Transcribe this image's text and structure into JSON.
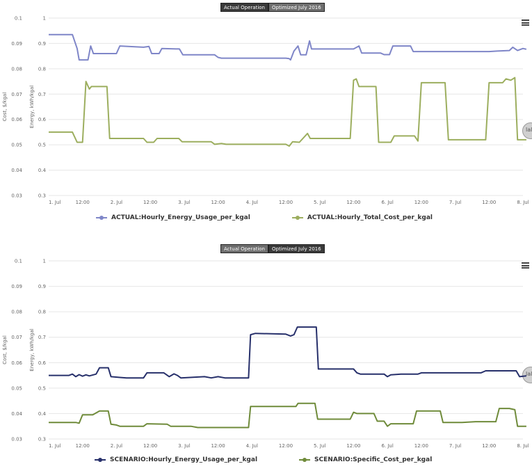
{
  "tabs": {
    "actual": "Actual Operation",
    "optimized": "Optimized July 2016"
  },
  "colors": {
    "actual_energy": "#7f86c8",
    "actual_cost": "#9cae5e",
    "scenario_energy": "#27306b",
    "scenario_cost": "#6f8b3a",
    "grid": "#e6e6e6"
  },
  "chart_data": [
    {
      "type": "line",
      "active_tab": "actual",
      "xlabel": "",
      "x_tick_labels": [
        "1. Jul",
        "12:00",
        "2. Jul",
        "12:00",
        "3. Jul",
        "12:00",
        "4. Jul",
        "12:00",
        "5. Jul",
        "12:00",
        "6. Jul",
        "12:00",
        "7. Jul",
        "12:00",
        "8. Jul"
      ],
      "y_axis_cost": {
        "label": "Cost, $/kgal",
        "ylim": [
          0.03,
          0.1
        ],
        "ticks": [
          "0.03",
          "0.04",
          "0.05",
          "0.06",
          "0.07",
          "0.08",
          "0.09",
          "0.1"
        ]
      },
      "y_axis_energy": {
        "label": "Energy, kWh/kgal",
        "ylim": [
          0.3,
          1
        ],
        "ticks": [
          "0.3",
          "0.4",
          "0.5",
          "0.6",
          "0.7",
          "0.8",
          "0.9",
          "1"
        ]
      },
      "legend_position": "bottom",
      "series": [
        {
          "name": "ACTUAL:Hourly_Energy_Usage_per_kgal",
          "axis": "energy",
          "points": [
            [
              0,
              0.935
            ],
            [
              0.35,
              0.935
            ],
            [
              0.42,
              0.88
            ],
            [
              0.45,
              0.835
            ],
            [
              0.58,
              0.835
            ],
            [
              0.62,
              0.89
            ],
            [
              0.66,
              0.86
            ],
            [
              1.0,
              0.86
            ],
            [
              1.05,
              0.89
            ],
            [
              1.4,
              0.885
            ],
            [
              1.48,
              0.888
            ],
            [
              1.52,
              0.86
            ],
            [
              1.63,
              0.86
            ],
            [
              1.67,
              0.88
            ],
            [
              1.93,
              0.878
            ],
            [
              1.98,
              0.855
            ],
            [
              2.45,
              0.855
            ],
            [
              2.5,
              0.845
            ],
            [
              2.55,
              0.842
            ],
            [
              3.5,
              0.842
            ],
            [
              3.55,
              0.84
            ],
            [
              3.57,
              0.835
            ],
            [
              3.62,
              0.87
            ],
            [
              3.68,
              0.89
            ],
            [
              3.72,
              0.855
            ],
            [
              3.8,
              0.855
            ],
            [
              3.85,
              0.91
            ],
            [
              3.88,
              0.878
            ],
            [
              4.5,
              0.878
            ],
            [
              4.58,
              0.89
            ],
            [
              4.62,
              0.862
            ],
            [
              4.9,
              0.862
            ],
            [
              4.95,
              0.856
            ],
            [
              5.03,
              0.856
            ],
            [
              5.08,
              0.89
            ],
            [
              5.34,
              0.89
            ],
            [
              5.38,
              0.868
            ],
            [
              6.5,
              0.868
            ],
            [
              6.62,
              0.87
            ],
            [
              6.8,
              0.872
            ],
            [
              6.85,
              0.885
            ],
            [
              6.92,
              0.872
            ],
            [
              7.0,
              0.88
            ],
            [
              7.05,
              0.877
            ]
          ]
        },
        {
          "name": "ACTUAL:Hourly_Total_Cost_per_kgal",
          "axis": "cost",
          "points": [
            [
              0,
              0.055
            ],
            [
              0.35,
              0.055
            ],
            [
              0.42,
              0.051
            ],
            [
              0.5,
              0.051
            ],
            [
              0.55,
              0.075
            ],
            [
              0.6,
              0.072
            ],
            [
              0.63,
              0.073
            ],
            [
              0.86,
              0.073
            ],
            [
              0.9,
              0.0525
            ],
            [
              1.4,
              0.0525
            ],
            [
              1.45,
              0.051
            ],
            [
              1.55,
              0.051
            ],
            [
              1.6,
              0.0525
            ],
            [
              1.92,
              0.0525
            ],
            [
              1.97,
              0.0512
            ],
            [
              2.4,
              0.0512
            ],
            [
              2.45,
              0.0502
            ],
            [
              2.55,
              0.0505
            ],
            [
              2.62,
              0.0502
            ],
            [
              3.5,
              0.0502
            ],
            [
              3.55,
              0.0495
            ],
            [
              3.6,
              0.0512
            ],
            [
              3.7,
              0.051
            ],
            [
              3.82,
              0.0545
            ],
            [
              3.86,
              0.0525
            ],
            [
              4.45,
              0.0525
            ],
            [
              4.5,
              0.0755
            ],
            [
              4.54,
              0.076
            ],
            [
              4.58,
              0.073
            ],
            [
              4.83,
              0.073
            ],
            [
              4.87,
              0.051
            ],
            [
              5.05,
              0.051
            ],
            [
              5.1,
              0.0535
            ],
            [
              5.4,
              0.0535
            ],
            [
              5.45,
              0.0515
            ],
            [
              5.5,
              0.0745
            ],
            [
              5.85,
              0.0745
            ],
            [
              5.9,
              0.052
            ],
            [
              6.45,
              0.052
            ],
            [
              6.5,
              0.0745
            ],
            [
              6.7,
              0.0745
            ],
            [
              6.75,
              0.076
            ],
            [
              6.82,
              0.0755
            ],
            [
              6.88,
              0.0765
            ],
            [
              6.92,
              0.052
            ],
            [
              7.05,
              0.052
            ]
          ]
        }
      ]
    },
    {
      "type": "line",
      "active_tab": "optimized",
      "xlabel": "",
      "x_tick_labels": [
        "1. Jul",
        "12:00",
        "2. Jul",
        "12:00",
        "3. Jul",
        "12:00",
        "4. Jul",
        "12:00",
        "5. Jul",
        "12:00",
        "6. Jul",
        "12:00",
        "7. Jul",
        "12:00",
        "8. Jul"
      ],
      "y_axis_cost": {
        "label": "Cost, $/kgal",
        "ylim": [
          0.03,
          0.1
        ],
        "ticks": [
          "0.03",
          "0.04",
          "0.05",
          "0.06",
          "0.07",
          "0.08",
          "0.09",
          "0.1"
        ]
      },
      "y_axis_energy": {
        "label": "Energy, kWh/kgal",
        "ylim": [
          0.3,
          1
        ],
        "ticks": [
          "0.3",
          "0.4",
          "0.5",
          "0.6",
          "0.7",
          "0.8",
          "0.9",
          "1"
        ]
      },
      "legend_position": "bottom",
      "series": [
        {
          "name": "SCENARIO:Hourly_Energy_Usage_per_kgal",
          "axis": "energy",
          "points": [
            [
              0,
              0.55
            ],
            [
              0.3,
              0.55
            ],
            [
              0.35,
              0.555
            ],
            [
              0.4,
              0.545
            ],
            [
              0.45,
              0.553
            ],
            [
              0.5,
              0.547
            ],
            [
              0.55,
              0.552
            ],
            [
              0.6,
              0.548
            ],
            [
              0.7,
              0.555
            ],
            [
              0.75,
              0.58
            ],
            [
              0.88,
              0.58
            ],
            [
              0.92,
              0.545
            ],
            [
              1.05,
              0.542
            ],
            [
              1.15,
              0.54
            ],
            [
              1.4,
              0.54
            ],
            [
              1.45,
              0.56
            ],
            [
              1.7,
              0.56
            ],
            [
              1.78,
              0.545
            ],
            [
              1.85,
              0.556
            ],
            [
              1.9,
              0.55
            ],
            [
              1.95,
              0.54
            ],
            [
              2.3,
              0.545
            ],
            [
              2.4,
              0.54
            ],
            [
              2.5,
              0.545
            ],
            [
              2.6,
              0.54
            ],
            [
              2.95,
              0.54
            ],
            [
              2.98,
              0.71
            ],
            [
              3.05,
              0.715
            ],
            [
              3.5,
              0.712
            ],
            [
              3.57,
              0.705
            ],
            [
              3.62,
              0.71
            ],
            [
              3.67,
              0.74
            ],
            [
              3.95,
              0.74
            ],
            [
              3.98,
              0.575
            ],
            [
              4.5,
              0.575
            ],
            [
              4.55,
              0.56
            ],
            [
              4.6,
              0.555
            ],
            [
              4.95,
              0.555
            ],
            [
              5.0,
              0.545
            ],
            [
              5.05,
              0.552
            ],
            [
              5.2,
              0.555
            ],
            [
              5.45,
              0.555
            ],
            [
              5.5,
              0.56
            ],
            [
              6.38,
              0.56
            ],
            [
              6.45,
              0.568
            ],
            [
              6.9,
              0.568
            ],
            [
              6.95,
              0.545
            ],
            [
              7.05,
              0.548
            ]
          ]
        },
        {
          "name": "SCENARIO:Specific_Cost_per_kgal",
          "axis": "cost",
          "points": [
            [
              0,
              0.0365
            ],
            [
              0.35,
              0.0365
            ],
            [
              0.4,
              0.0365
            ],
            [
              0.45,
              0.0362
            ],
            [
              0.5,
              0.0395
            ],
            [
              0.65,
              0.0395
            ],
            [
              0.75,
              0.041
            ],
            [
              0.88,
              0.041
            ],
            [
              0.92,
              0.0358
            ],
            [
              1.0,
              0.0355
            ],
            [
              1.05,
              0.035
            ],
            [
              1.4,
              0.035
            ],
            [
              1.45,
              0.036
            ],
            [
              1.75,
              0.0358
            ],
            [
              1.8,
              0.035
            ],
            [
              2.1,
              0.035
            ],
            [
              2.2,
              0.0345
            ],
            [
              2.95,
              0.0345
            ],
            [
              2.98,
              0.0428
            ],
            [
              3.65,
              0.0428
            ],
            [
              3.68,
              0.044
            ],
            [
              3.93,
              0.044
            ],
            [
              3.97,
              0.0378
            ],
            [
              4.45,
              0.0378
            ],
            [
              4.5,
              0.0405
            ],
            [
              4.55,
              0.04
            ],
            [
              4.8,
              0.04
            ],
            [
              4.85,
              0.037
            ],
            [
              4.95,
              0.037
            ],
            [
              5.0,
              0.035
            ],
            [
              5.05,
              0.036
            ],
            [
              5.38,
              0.036
            ],
            [
              5.43,
              0.041
            ],
            [
              5.78,
              0.041
            ],
            [
              5.82,
              0.0365
            ],
            [
              6.1,
              0.0365
            ],
            [
              6.3,
              0.0368
            ],
            [
              6.6,
              0.0368
            ],
            [
              6.65,
              0.042
            ],
            [
              6.8,
              0.042
            ],
            [
              6.88,
              0.0415
            ],
            [
              6.92,
              0.035
            ],
            [
              7.05,
              0.035
            ]
          ]
        }
      ]
    }
  ]
}
